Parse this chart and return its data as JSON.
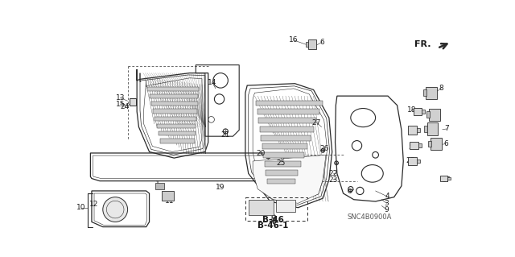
{
  "bg_color": "#ffffff",
  "line_color": "#2a2a2a",
  "text_color": "#1a1a1a",
  "figsize": [
    6.4,
    3.19
  ],
  "dpi": 100,
  "ref_labels": [
    "B-46",
    "B-46-1"
  ],
  "snc_label": "SNC4B0900A",
  "fr_label": "FR."
}
